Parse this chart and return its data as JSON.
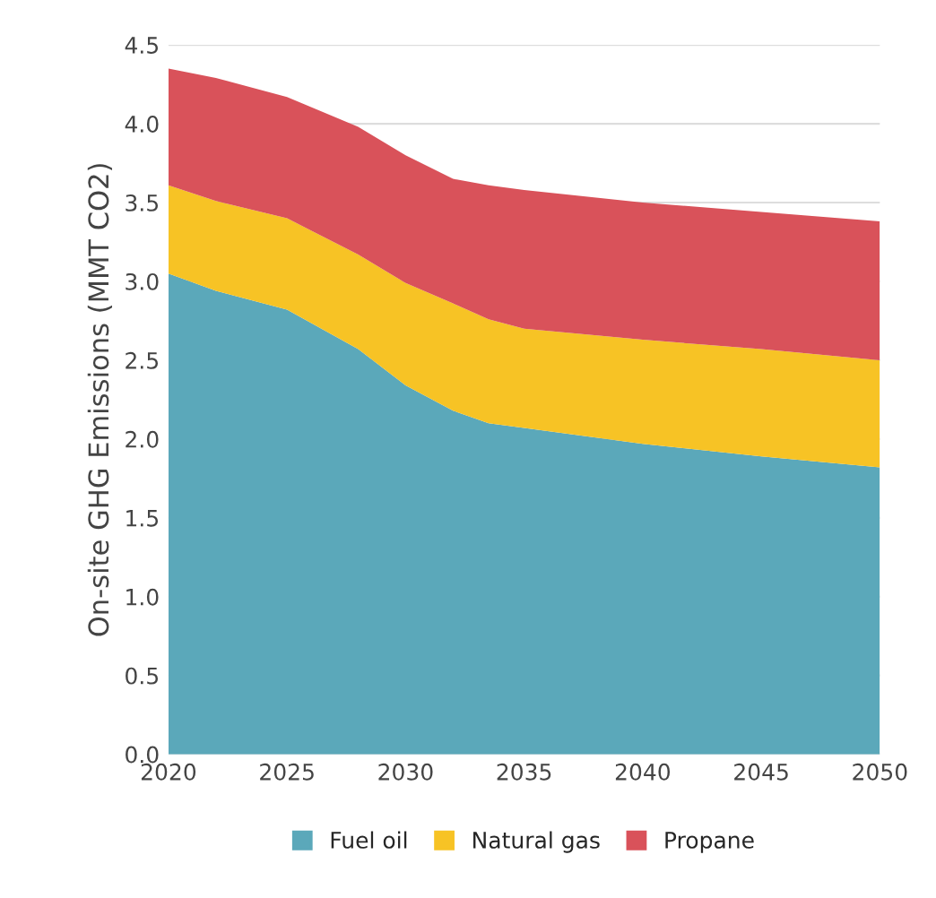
{
  "chart_data": {
    "type": "area",
    "stacked": true,
    "ylabel": "On-site GHG Emissions (MMT CO2)",
    "x": [
      2020,
      2022,
      2025,
      2028,
      2030,
      2032,
      2033.5,
      2035,
      2040,
      2045,
      2050
    ],
    "series": [
      {
        "name": "Fuel oil",
        "color": "#5ba8ba",
        "values": [
          3.05,
          2.94,
          2.82,
          2.57,
          2.34,
          2.18,
          2.1,
          2.07,
          1.97,
          1.89,
          1.82
        ]
      },
      {
        "name": "Natural gas",
        "color": "#f7c325",
        "values": [
          0.56,
          0.57,
          0.58,
          0.6,
          0.65,
          0.68,
          0.66,
          0.63,
          0.66,
          0.68,
          0.68
        ]
      },
      {
        "name": "Propane",
        "color": "#d9525a",
        "values": [
          0.74,
          0.78,
          0.77,
          0.81,
          0.81,
          0.79,
          0.85,
          0.88,
          0.87,
          0.87,
          0.88
        ]
      }
    ],
    "xlim": [
      2020,
      2050
    ],
    "xticks": [
      2020,
      2025,
      2030,
      2035,
      2040,
      2045,
      2050
    ],
    "ylim": [
      0,
      4.5
    ],
    "yticks": [
      {
        "value": 0,
        "label": "0.0"
      },
      {
        "value": 0.5,
        "label": "0.5"
      },
      {
        "value": 1,
        "label": "1.0"
      },
      {
        "value": 1.5,
        "label": "1.5"
      },
      {
        "value": 2,
        "label": "2.0"
      },
      {
        "value": 2.5,
        "label": "2.5"
      },
      {
        "value": 3,
        "label": "3.0"
      },
      {
        "value": 3.5,
        "label": "3.5"
      },
      {
        "value": 4,
        "label": "4.0"
      },
      {
        "value": 4.5,
        "label": "4.5"
      }
    ],
    "grid": "y",
    "legend": "bottom"
  }
}
